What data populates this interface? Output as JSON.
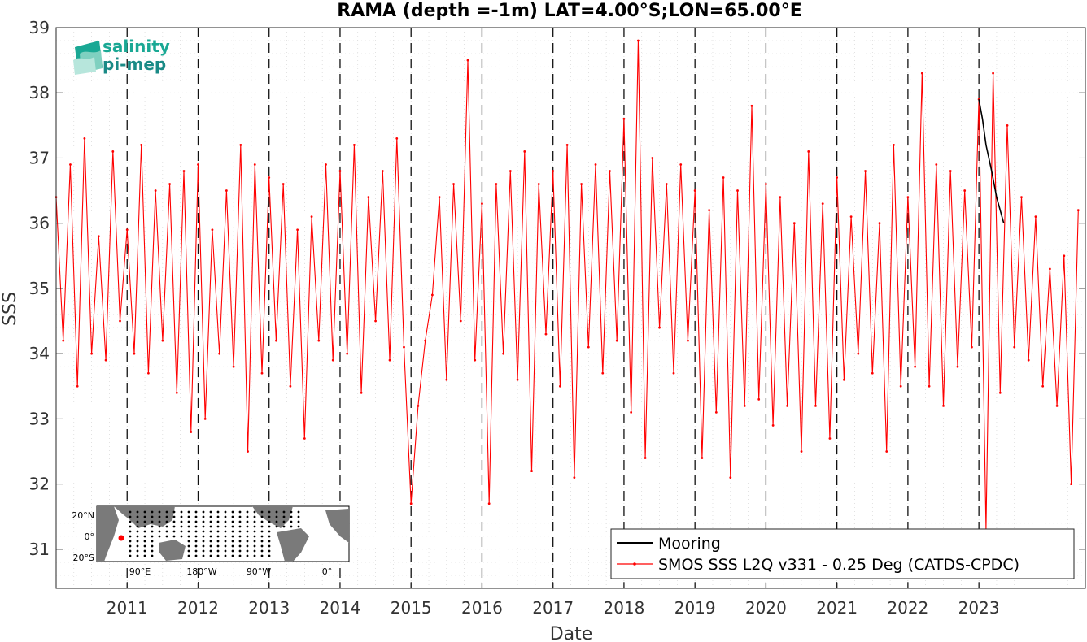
{
  "chart_data": {
    "type": "line",
    "title": "RAMA (depth =-1m) LAT=4.00°S;LON=65.00°E",
    "xlabel": "Date",
    "ylabel": "SSS",
    "xlim": [
      2010.0,
      2024.5
    ],
    "ylim": [
      30.4,
      39
    ],
    "x_ticks": [
      2011,
      2012,
      2013,
      2014,
      2015,
      2016,
      2017,
      2018,
      2019,
      2020,
      2021,
      2022,
      2023
    ],
    "x_tick_labels": [
      "2011",
      "2012",
      "2013",
      "2014",
      "2015",
      "2016",
      "2017",
      "2018",
      "2019",
      "2020",
      "2021",
      "2022",
      "2023"
    ],
    "y_ticks": [
      31,
      32,
      33,
      34,
      35,
      36,
      37,
      38,
      39
    ],
    "y_tick_labels": [
      "31",
      "32",
      "33",
      "34",
      "35",
      "36",
      "37",
      "38",
      "39"
    ],
    "year_lines": [
      2011,
      2012,
      2013,
      2014,
      2015,
      2016,
      2017,
      2018,
      2019,
      2020,
      2021,
      2022,
      2023
    ],
    "grid": true,
    "legend_position": "bottom-right",
    "series": [
      {
        "name": "Mooring",
        "color": "#000000",
        "x": [
          2023.0,
          2023.05,
          2023.1,
          2023.18,
          2023.25,
          2023.35
        ],
        "values": [
          37.9,
          37.6,
          37.2,
          36.8,
          36.4,
          36.0
        ]
      },
      {
        "name": "SMOS SSS L2Q v331 - 0.25 Deg (CATDS-CPDC)",
        "color": "#ff0000",
        "x": [
          2010.0,
          2010.1,
          2010.2,
          2010.3,
          2010.4,
          2010.5,
          2010.6,
          2010.7,
          2010.8,
          2010.9,
          2011.0,
          2011.1,
          2011.2,
          2011.3,
          2011.4,
          2011.5,
          2011.6,
          2011.7,
          2011.8,
          2011.9,
          2012.0,
          2012.1,
          2012.2,
          2012.3,
          2012.4,
          2012.5,
          2012.6,
          2012.7,
          2012.8,
          2012.9,
          2013.0,
          2013.1,
          2013.2,
          2013.3,
          2013.4,
          2013.5,
          2013.6,
          2013.7,
          2013.8,
          2013.9,
          2014.0,
          2014.1,
          2014.2,
          2014.3,
          2014.4,
          2014.5,
          2014.6,
          2014.7,
          2014.8,
          2014.9,
          2015.0,
          2015.1,
          2015.2,
          2015.3,
          2015.4,
          2015.5,
          2015.6,
          2015.7,
          2015.8,
          2015.9,
          2016.0,
          2016.1,
          2016.2,
          2016.3,
          2016.4,
          2016.5,
          2016.6,
          2016.7,
          2016.8,
          2016.9,
          2017.0,
          2017.1,
          2017.2,
          2017.3,
          2017.4,
          2017.5,
          2017.6,
          2017.7,
          2017.8,
          2017.9,
          2018.0,
          2018.1,
          2018.2,
          2018.3,
          2018.4,
          2018.5,
          2018.6,
          2018.7,
          2018.8,
          2018.9,
          2019.0,
          2019.1,
          2019.2,
          2019.3,
          2019.4,
          2019.5,
          2019.6,
          2019.7,
          2019.8,
          2019.9,
          2020.0,
          2020.1,
          2020.2,
          2020.3,
          2020.4,
          2020.5,
          2020.6,
          2020.7,
          2020.8,
          2020.9,
          2021.0,
          2021.1,
          2021.2,
          2021.3,
          2021.4,
          2021.5,
          2021.6,
          2021.7,
          2021.8,
          2021.9,
          2022.0,
          2022.1,
          2022.2,
          2022.3,
          2022.4,
          2022.5,
          2022.6,
          2022.7,
          2022.8,
          2022.9,
          2023.0,
          2023.1,
          2023.2,
          2023.3,
          2023.4,
          2023.5,
          2023.6,
          2023.7,
          2023.8,
          2023.9,
          2024.0,
          2024.1,
          2024.2,
          2024.3,
          2024.4
        ],
        "values": [
          36.4,
          34.2,
          36.9,
          33.5,
          37.3,
          34.0,
          35.8,
          33.9,
          37.1,
          34.5,
          35.9,
          34.0,
          37.2,
          33.7,
          36.5,
          34.2,
          36.6,
          33.4,
          36.8,
          32.8,
          36.9,
          33.0,
          35.9,
          34.0,
          36.5,
          33.8,
          37.2,
          32.5,
          36.9,
          33.7,
          36.7,
          34.2,
          36.6,
          33.5,
          35.9,
          32.7,
          36.1,
          34.2,
          36.9,
          33.9,
          36.8,
          34.0,
          37.2,
          33.4,
          36.4,
          34.5,
          36.8,
          33.9,
          37.3,
          34.1,
          31.7,
          33.2,
          34.2,
          34.9,
          36.4,
          33.6,
          36.6,
          34.5,
          38.5,
          33.9,
          36.3,
          31.7,
          36.6,
          34.0,
          36.8,
          33.6,
          37.1,
          32.2,
          36.6,
          34.3,
          36.8,
          33.5,
          37.2,
          32.1,
          36.6,
          34.1,
          36.9,
          33.7,
          36.8,
          34.2,
          37.6,
          33.1,
          38.8,
          32.4,
          37.0,
          34.4,
          36.6,
          33.7,
          36.9,
          34.2,
          36.5,
          32.4,
          36.2,
          33.1,
          36.7,
          32.1,
          36.5,
          33.2,
          37.8,
          33.3,
          36.6,
          32.9,
          36.4,
          33.2,
          36.0,
          32.5,
          37.1,
          33.2,
          36.3,
          32.7,
          36.7,
          33.6,
          36.1,
          34.0,
          36.8,
          33.7,
          36.0,
          32.5,
          37.2,
          33.5,
          36.4,
          33.8,
          38.3,
          33.5,
          36.9,
          33.2,
          36.8,
          33.8,
          36.5,
          34.1,
          37.9,
          31.3,
          38.3,
          33.4,
          37.5,
          34.1,
          36.4,
          33.9,
          36.1,
          33.5,
          35.3,
          33.2,
          35.5,
          32.0,
          36.2
        ]
      }
    ]
  },
  "logo": {
    "line1": "salinity",
    "line2": "pi-mep"
  },
  "map_inset": {
    "lat_labels": [
      "20°N",
      "0°",
      "20°S"
    ],
    "lon_labels": [
      "90°E",
      "180°W",
      "90°W",
      "0°"
    ],
    "highlight_color": "#ff0000"
  }
}
